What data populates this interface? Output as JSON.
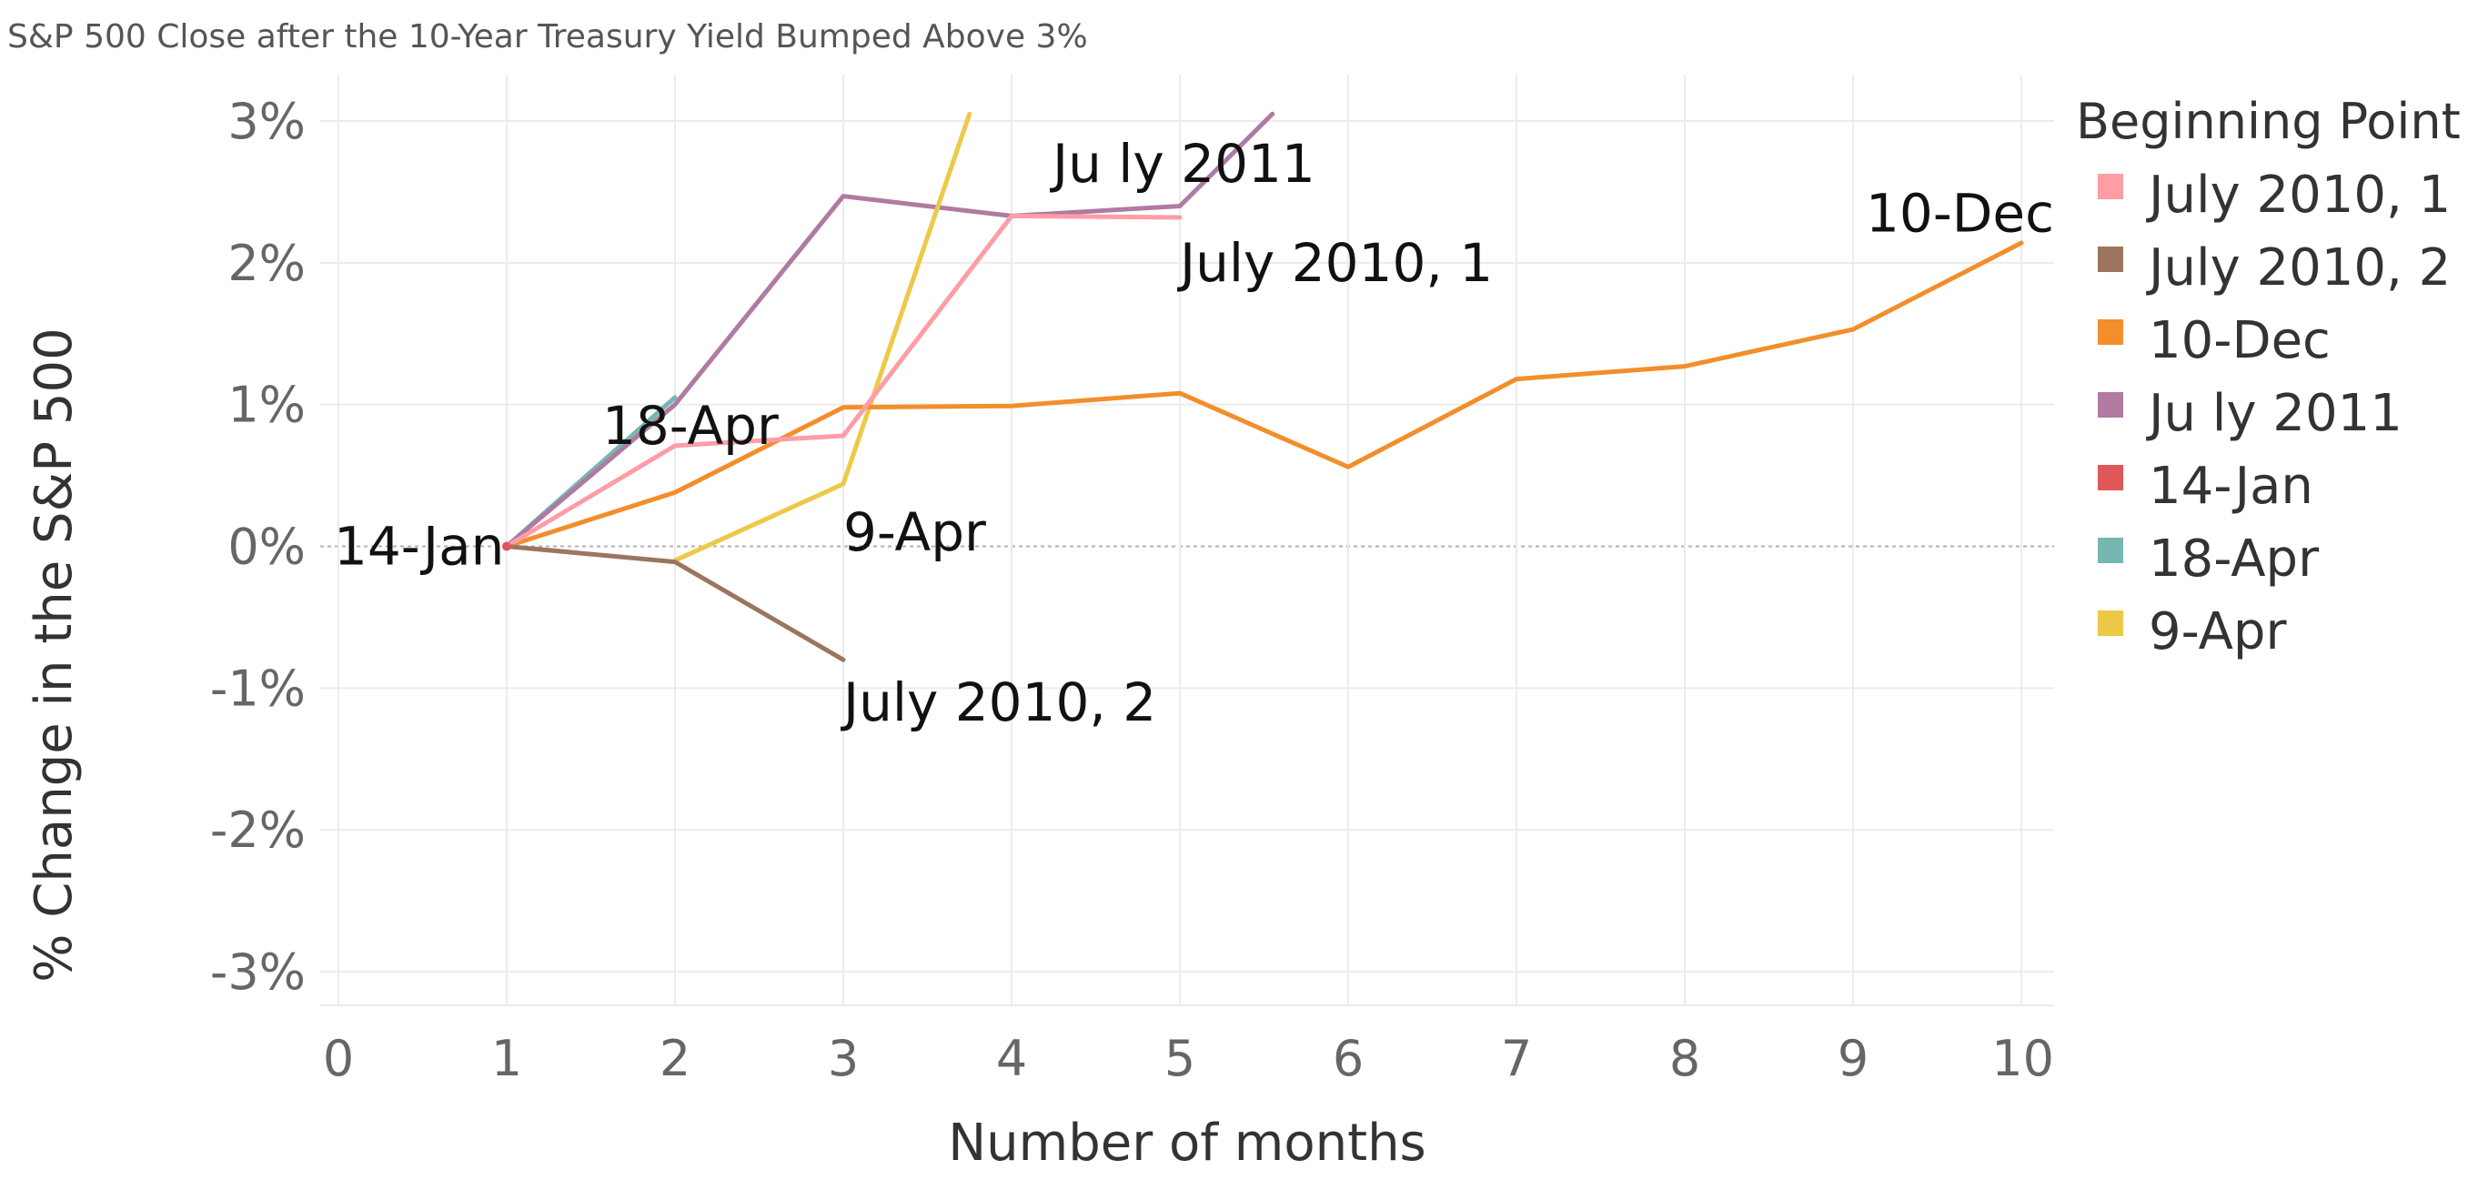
{
  "chart_data": {
    "type": "line",
    "title": "S&P 500 Close after the 10-Year Treasury Yield Bumped Above 3%",
    "xlabel": "Number of months",
    "ylabel": "% Change in the S&P 500",
    "xlim": [
      0,
      10
    ],
    "ylim": [
      -3.25,
      3.05
    ],
    "x_ticks": [
      "0",
      "1",
      "2",
      "3",
      "4",
      "5",
      "6",
      "7",
      "8",
      "9",
      "10"
    ],
    "y_ticks": [
      {
        "value": 3,
        "label": "3%"
      },
      {
        "value": 2,
        "label": "2%"
      },
      {
        "value": 1,
        "label": "1%"
      },
      {
        "value": 0,
        "label": "0%"
      },
      {
        "value": -1,
        "label": "-1%"
      },
      {
        "value": -2,
        "label": "-2%"
      },
      {
        "value": -3,
        "label": "-3%"
      }
    ],
    "grid": true,
    "legend": {
      "title": "Beginning Point",
      "position": "right"
    },
    "series": [
      {
        "name": "18-Apr",
        "label": "18-Apr",
        "color": "#76b7b2",
        "x": [
          1,
          2
        ],
        "y": [
          0,
          1.05
        ]
      },
      {
        "name": "July 2011",
        "label": "Ju ly 2011",
        "color": "#b07aa1",
        "x": [
          1,
          2,
          3,
          4,
          5,
          5.55
        ],
        "y": [
          0,
          1.0,
          2.47,
          2.33,
          2.4,
          3.05
        ]
      },
      {
        "name": "9-Apr",
        "label": "9-Apr",
        "color": "#edc948",
        "x": [
          2,
          3,
          3.75
        ],
        "y": [
          -0.1,
          0.44,
          3.05
        ]
      },
      {
        "name": "10-Dec",
        "label": "10-Dec",
        "color": "#f28e2b",
        "x": [
          1,
          2,
          3,
          4,
          5,
          6,
          7,
          8,
          9,
          10
        ],
        "y": [
          0,
          0.38,
          0.98,
          0.99,
          1.08,
          0.56,
          1.18,
          1.27,
          1.53,
          2.14
        ]
      },
      {
        "name": "July 2010, 1",
        "label": "July 2010, 1",
        "color": "#ff9da7",
        "x": [
          1,
          2,
          3,
          4,
          5
        ],
        "y": [
          0,
          0.71,
          0.78,
          2.33,
          2.32
        ]
      },
      {
        "name": "July 2010, 2",
        "label": "July 2010, 2",
        "color": "#9c755f",
        "x": [
          1,
          2,
          3
        ],
        "y": [
          0,
          -0.11,
          -0.8
        ]
      },
      {
        "name": "14-Jan",
        "label": "14-Jan",
        "color": "#e15759",
        "x": [
          1
        ],
        "y": [
          0
        ]
      }
    ],
    "line_labels": [
      {
        "series": "14-Jan",
        "text": "14-Jan",
        "x": 1,
        "y": 0
      },
      {
        "series": "18-Apr",
        "text": "18-Apr",
        "x": 2,
        "y": 0.85
      },
      {
        "series": "9-Apr",
        "text": "9-Apr",
        "x": 3,
        "y": 0.1
      },
      {
        "series": "July 2010, 2",
        "text": "July 2010, 2",
        "x": 3,
        "y": -1.1
      },
      {
        "series": "July 2011",
        "text": "Ju ly 2011",
        "x": 5,
        "y": 2.7
      },
      {
        "series": "July 2010, 1",
        "text": "July 2010, 1",
        "x": 5,
        "y": 2.0
      },
      {
        "series": "10-Dec",
        "text": "10-Dec",
        "x": 10,
        "y": 2.35
      }
    ],
    "legend_items": [
      {
        "label": "July 2010, 1",
        "color": "#ff9da7"
      },
      {
        "label": "July 2010, 2",
        "color": "#9c755f"
      },
      {
        "label": "10-Dec",
        "color": "#f28e2b"
      },
      {
        "label": "Ju ly 2011",
        "color": "#b07aa1"
      },
      {
        "label": "14-Jan",
        "color": "#e15759"
      },
      {
        "label": "18-Apr",
        "color": "#76b7b2"
      },
      {
        "label": "9-Apr",
        "color": "#edc948"
      }
    ]
  }
}
